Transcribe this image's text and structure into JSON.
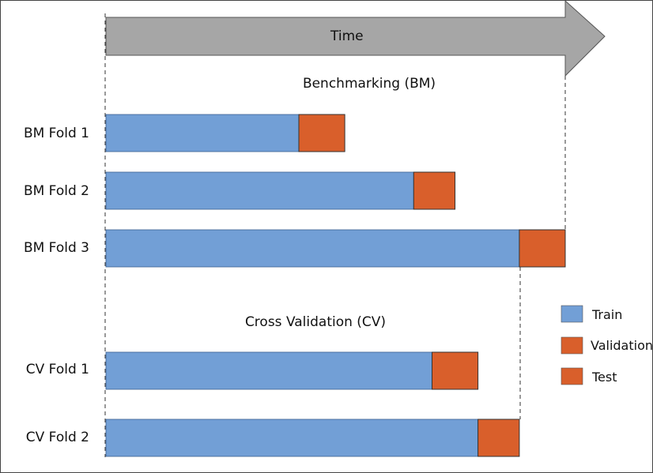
{
  "time_arrow": {
    "label": "Time"
  },
  "sections": {
    "benchmarking": {
      "title": "Benchmarking (BM)"
    },
    "cross_validation": {
      "title": "Cross Validation (CV)"
    }
  },
  "folds": [
    {
      "label": "BM Fold 1",
      "train_end": 0.42,
      "val_end": 0.52
    },
    {
      "label": "BM Fold 2",
      "train_end": 0.67,
      "val_end": 0.76
    },
    {
      "label": "BM Fold 3",
      "train_end": 0.9,
      "val_end": 1.0
    },
    {
      "label": "CV Fold 1",
      "train_end": 0.71,
      "val_end": 0.81
    },
    {
      "label": "CV Fold 2",
      "train_end": 0.81,
      "val_end": 0.9
    }
  ],
  "legend": [
    {
      "label": "Train",
      "color": "#729fd6"
    },
    {
      "label": "Validation",
      "color": "#d95f2b"
    },
    {
      "label": "Test",
      "color": "#d95f2b"
    }
  ],
  "colors": {
    "train": "#729fd6",
    "validation": "#d95f2b",
    "arrow": "#a6a6a6"
  }
}
